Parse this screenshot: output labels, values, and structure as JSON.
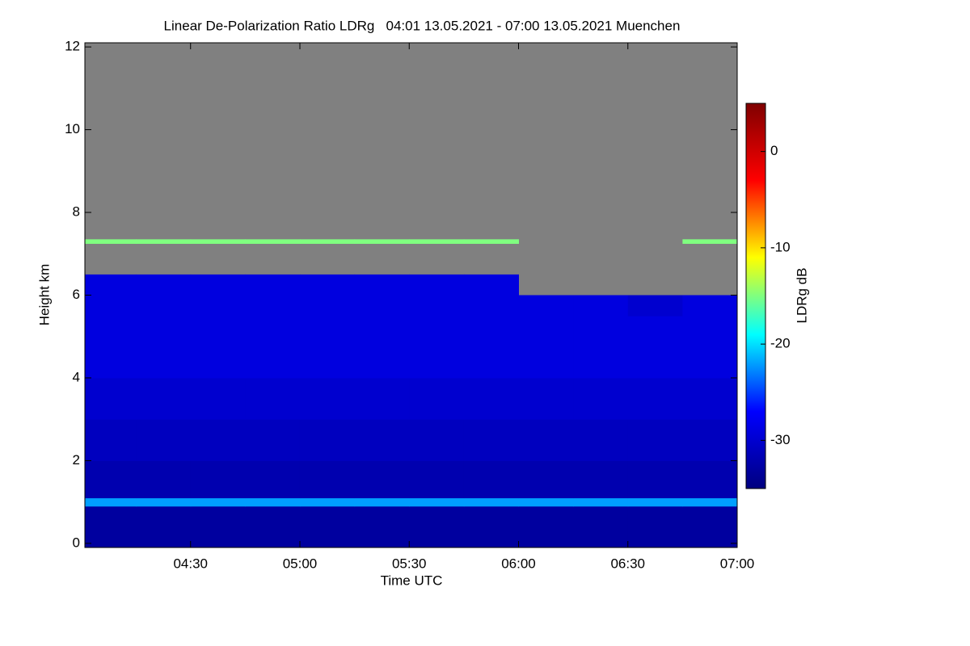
{
  "chart_data": {
    "type": "heatmap",
    "title": "Linear De-Polarization Ratio LDRg   04:01 13.05.2021 - 07:00 13.05.2021 Muenchen",
    "x_label": "Time UTC",
    "y_label": "Height km",
    "colorbar_label": "LDRg dB",
    "xlim": [
      241,
      420
    ],
    "xticks": [
      {
        "value": 270,
        "label": "04:30"
      },
      {
        "value": 300,
        "label": "05:00"
      },
      {
        "value": 330,
        "label": "05:30"
      },
      {
        "value": 360,
        "label": "06:00"
      },
      {
        "value": 390,
        "label": "06:30"
      },
      {
        "value": 420,
        "label": "07:00"
      }
    ],
    "ylim": [
      -0.1,
      12.1
    ],
    "yticks": [
      0,
      2,
      4,
      6,
      8,
      10,
      12
    ],
    "zlim": [
      -35,
      5
    ],
    "zticks": [
      0,
      -10,
      -20,
      -30
    ],
    "colorscale": [
      "#00007f",
      "#0000ff",
      "#00ffff",
      "#ffff00",
      "#ff0000",
      "#7f0000"
    ],
    "nodata_color": "#808080",
    "x_edges": [
      241,
      255,
      270,
      285,
      300,
      315,
      330,
      345,
      360,
      375,
      390,
      405,
      420
    ],
    "y_edges": [
      -0.1,
      0.9,
      1.1,
      2,
      3,
      4,
      5,
      5.5,
      6,
      6.5,
      7,
      7.25,
      7.35,
      12.1
    ],
    "z": [
      [
        -33,
        -33,
        -33,
        -33,
        -33,
        -33,
        -33,
        -33,
        -33,
        -33,
        -33,
        -33
      ],
      [
        -22,
        -22,
        -22,
        -22,
        -22,
        -22,
        -22,
        -22,
        -22,
        -22,
        -22,
        -22
      ],
      [
        -32,
        -32,
        -32,
        -32,
        -32,
        -32,
        -32,
        -32,
        -32,
        -32,
        -32,
        -32
      ],
      [
        -31,
        -31,
        -31,
        -31,
        -31,
        -31,
        -31,
        -31,
        -31,
        -31,
        -31,
        -31
      ],
      [
        -30,
        -30,
        -30,
        -30,
        -30,
        -30,
        -30,
        -30,
        -30,
        -30,
        -30,
        -30
      ],
      [
        -29,
        -29,
        -29,
        -29,
        -29,
        -29,
        -29,
        -29,
        -29,
        -29,
        -29,
        -29
      ],
      [
        -29,
        -29,
        -29,
        -29,
        -29,
        -29,
        -29,
        -29,
        -29,
        -29,
        -29,
        -29
      ],
      [
        -29,
        -29,
        -29,
        -29,
        -29,
        -29,
        -29,
        -29,
        -29,
        -29,
        -30,
        -29
      ],
      [
        -29,
        -29,
        -29,
        -29,
        -29,
        -29,
        -29,
        -29,
        null,
        null,
        null,
        null
      ],
      [
        null,
        null,
        null,
        null,
        null,
        null,
        null,
        null,
        null,
        null,
        null,
        null
      ],
      [
        null,
        null,
        null,
        null,
        null,
        null,
        null,
        null,
        null,
        null,
        null,
        null
      ],
      [
        -15,
        -15,
        -15,
        -15,
        -15,
        -15,
        -15,
        -15,
        null,
        null,
        null,
        -15
      ],
      [
        null,
        null,
        null,
        null,
        null,
        null,
        null,
        null,
        null,
        null,
        null,
        null
      ]
    ]
  }
}
